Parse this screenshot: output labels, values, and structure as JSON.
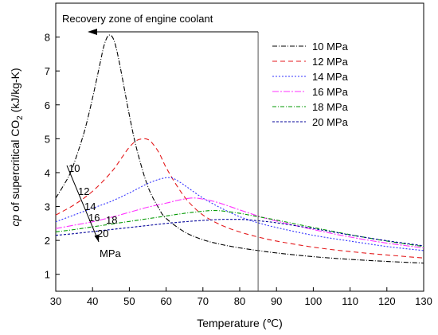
{
  "chart_data": {
    "type": "line",
    "title": "",
    "xlabel": "Temperature (℃)",
    "ylabel_parts": [
      "cp",
      " of supercritical CO",
      "2",
      " (kJ/kg-K)"
    ],
    "xlim": [
      30,
      130
    ],
    "ylim": [
      0.5,
      9
    ],
    "xticks": [
      30,
      40,
      50,
      60,
      70,
      80,
      90,
      100,
      110,
      120,
      130
    ],
    "yticks": [
      1,
      2,
      3,
      4,
      5,
      6,
      7,
      8
    ],
    "grid": false,
    "legend_position": "top-right",
    "series": [
      {
        "name": "10 MPa",
        "color": "#000000",
        "dash": "6 2 1 2",
        "x": [
          30,
          32,
          34,
          36,
          38,
          40,
          42,
          43,
          44,
          45,
          46,
          47,
          48,
          50,
          52,
          55,
          58,
          60,
          65,
          70,
          75,
          80,
          85,
          90,
          100,
          110,
          120,
          130
        ],
        "y": [
          3.25,
          3.6,
          4.0,
          4.6,
          5.3,
          6.2,
          7.2,
          7.7,
          8.0,
          8.05,
          7.85,
          7.4,
          6.85,
          5.7,
          4.7,
          3.6,
          2.95,
          2.65,
          2.25,
          2.02,
          1.88,
          1.78,
          1.7,
          1.63,
          1.52,
          1.44,
          1.38,
          1.33
        ]
      },
      {
        "name": "12 MPa",
        "color": "#e41a1c",
        "dash": "6 4",
        "x": [
          30,
          35,
          40,
          45,
          48,
          50,
          52,
          54,
          55,
          56,
          58,
          60,
          63,
          66,
          70,
          75,
          80,
          85,
          90,
          100,
          110,
          120,
          130
        ],
        "y": [
          2.75,
          3.05,
          3.45,
          4.0,
          4.45,
          4.75,
          4.95,
          5.0,
          4.98,
          4.9,
          4.6,
          4.15,
          3.6,
          3.15,
          2.75,
          2.45,
          2.25,
          2.1,
          1.98,
          1.8,
          1.67,
          1.57,
          1.48
        ]
      },
      {
        "name": "14 MPa",
        "color": "#3333ff",
        "dash": "2 2",
        "x": [
          30,
          35,
          40,
          45,
          50,
          55,
          58,
          60,
          61,
          62,
          64,
          66,
          70,
          75,
          80,
          85,
          90,
          100,
          110,
          120,
          130
        ],
        "y": [
          2.55,
          2.75,
          2.95,
          3.15,
          3.4,
          3.68,
          3.8,
          3.85,
          3.85,
          3.83,
          3.7,
          3.55,
          3.25,
          2.95,
          2.7,
          2.52,
          2.38,
          2.15,
          1.98,
          1.82,
          1.7
        ]
      },
      {
        "name": "16 MPa",
        "color": "#ff33ff",
        "dash": "8 2 2 2",
        "x": [
          30,
          35,
          40,
          45,
          50,
          55,
          60,
          63,
          66,
          68,
          70,
          73,
          76,
          80,
          85,
          90,
          100,
          110,
          120,
          130
        ],
        "y": [
          2.35,
          2.45,
          2.55,
          2.68,
          2.83,
          2.98,
          3.1,
          3.18,
          3.24,
          3.25,
          3.22,
          3.15,
          3.05,
          2.9,
          2.72,
          2.57,
          2.32,
          2.1,
          1.92,
          1.78
        ]
      },
      {
        "name": "18 MPa",
        "color": "#009900",
        "dash": "5 2 1 2",
        "x": [
          30,
          35,
          40,
          45,
          50,
          55,
          60,
          65,
          70,
          72,
          74,
          76,
          80,
          85,
          90,
          100,
          110,
          120,
          130
        ],
        "y": [
          2.25,
          2.32,
          2.4,
          2.48,
          2.56,
          2.64,
          2.72,
          2.8,
          2.86,
          2.88,
          2.88,
          2.86,
          2.8,
          2.7,
          2.6,
          2.38,
          2.17,
          1.98,
          1.82
        ]
      },
      {
        "name": "20 MPa",
        "color": "#000099",
        "dash": "3 2",
        "x": [
          30,
          35,
          40,
          45,
          50,
          55,
          60,
          65,
          70,
          75,
          78,
          80,
          82,
          85,
          90,
          100,
          110,
          120,
          130
        ],
        "y": [
          2.15,
          2.2,
          2.26,
          2.32,
          2.38,
          2.44,
          2.5,
          2.55,
          2.59,
          2.62,
          2.62,
          2.62,
          2.61,
          2.58,
          2.52,
          2.35,
          2.16,
          1.99,
          1.84
        ]
      }
    ],
    "annotations": {
      "recovery_zone_text": "Recovery zone of engine coolant",
      "recovery_zone_line_x": 85,
      "pressure_arrow_labels": [
        "10",
        "12",
        "14",
        "16",
        "18",
        "20"
      ],
      "pressure_unit": "MPa"
    }
  }
}
